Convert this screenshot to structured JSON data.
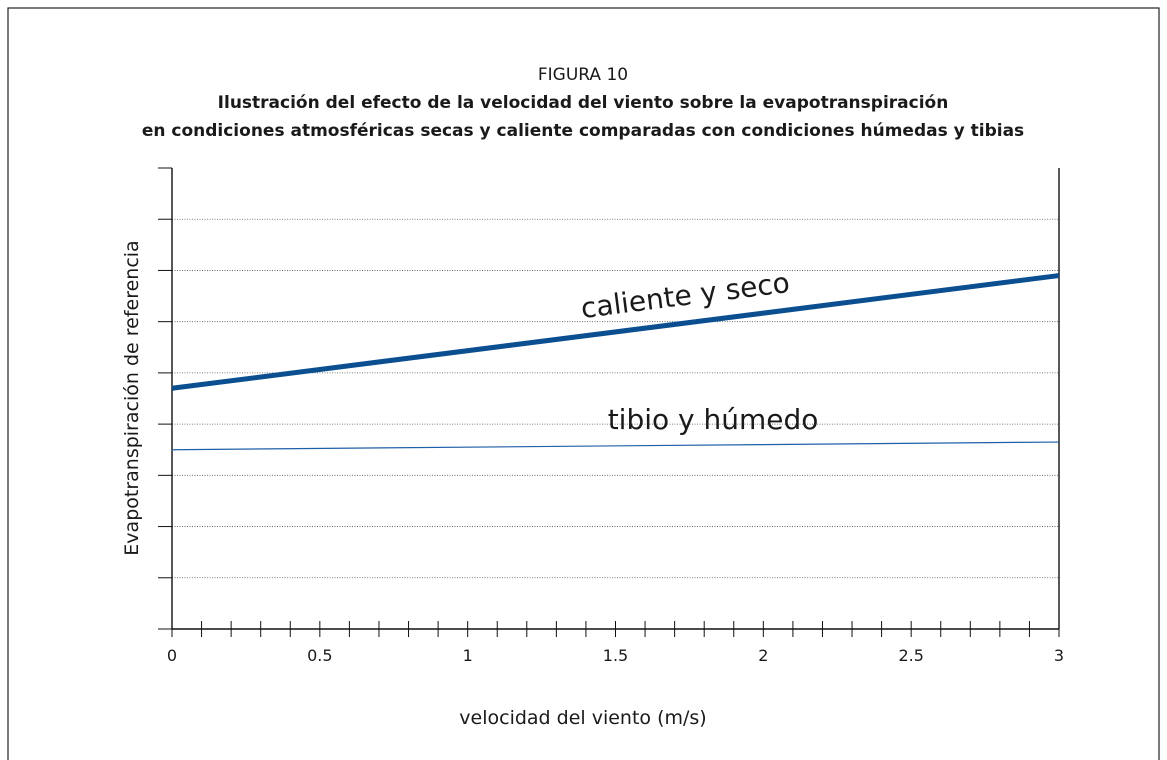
{
  "chart_data": {
    "type": "line",
    "figure_label": "FIGURA 10",
    "title": [
      "Ilustración del efecto de la velocidad del viento sobre la evapotranspiración",
      "en condiciones atmosféricas secas y caliente comparadas con condiciones húmedas y tibias"
    ],
    "x_label": "velocidad del viento (m/s)",
    "y_label": "Evapotranspiración de referencia",
    "x": [
      0,
      3
    ],
    "series": [
      {
        "name": "caliente y seco",
        "color": "#0b4f91",
        "width": 5,
        "values": [
          4.7,
          6.9
        ]
      },
      {
        "name": "tibio y húmedo",
        "color": "#1f5fa8",
        "width": 1.2,
        "values": [
          3.5,
          3.65
        ]
      }
    ],
    "xlim": [
      0,
      3
    ],
    "xticks": [
      0,
      0.5,
      1,
      1.5,
      2,
      2.5,
      3
    ],
    "xminorticks": [
      0.1,
      0.2,
      0.3,
      0.4,
      0.6,
      0.7,
      0.8,
      0.9,
      1.1,
      1.2,
      1.3,
      1.4,
      1.6,
      1.7,
      1.8,
      1.9,
      2.1,
      2.2,
      2.3,
      2.4,
      2.6,
      2.7,
      2.8,
      2.9
    ],
    "ylim": [
      0,
      9
    ],
    "yticks": [
      0,
      1,
      2,
      3,
      4,
      5,
      6,
      7,
      8,
      9
    ],
    "grid": true
  }
}
